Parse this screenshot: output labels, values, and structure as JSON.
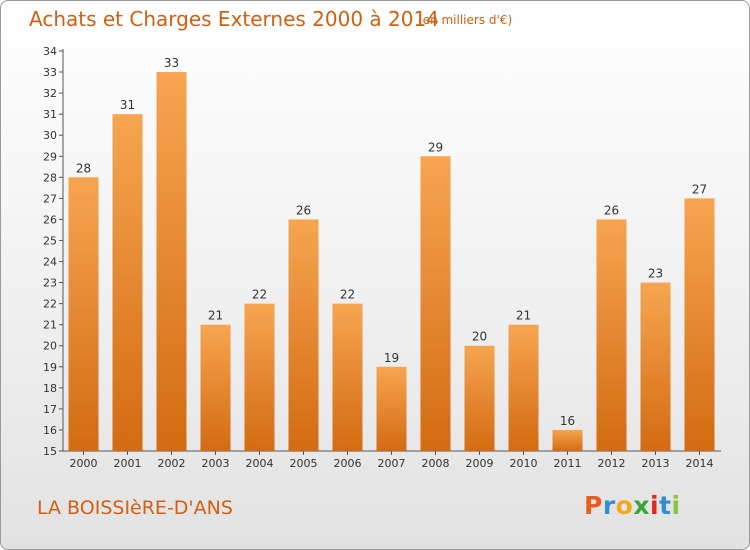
{
  "header": {
    "title": "Achats et Charges Externes 2000 à 2014",
    "unit": "(en milliers d'€)"
  },
  "footer": {
    "commune": "LA BOISSIèRE-D'ANS",
    "logo_text": "Proxiti",
    "logo_colors": [
      "#e85d1c",
      "#2e8fd1",
      "#f4a81c",
      "#3aa63a",
      "#e4261c",
      "#2e8fd1",
      "#8cc63f"
    ]
  },
  "colors": {
    "bar_light": "#f7a550",
    "bar_dark": "#d36b12",
    "accent": "#d35f11"
  },
  "chart_data": {
    "type": "bar",
    "categories": [
      "2000",
      "2001",
      "2002",
      "2003",
      "2004",
      "2005",
      "2006",
      "2007",
      "2008",
      "2009",
      "2010",
      "2011",
      "2012",
      "2013",
      "2014"
    ],
    "values": [
      28,
      31,
      33,
      21,
      22,
      26,
      22,
      19,
      29,
      20,
      21,
      16,
      26,
      23,
      27
    ],
    "title": "Achats et Charges Externes 2000 à 2014",
    "subtitle": "(en milliers d'€)",
    "xlabel": "",
    "ylabel": "",
    "ylim": [
      15,
      34
    ],
    "yticks": [
      15,
      16,
      17,
      18,
      19,
      20,
      21,
      22,
      23,
      24,
      25,
      26,
      27,
      28,
      29,
      30,
      31,
      32,
      33,
      34
    ],
    "grid": false,
    "legend": "none"
  }
}
